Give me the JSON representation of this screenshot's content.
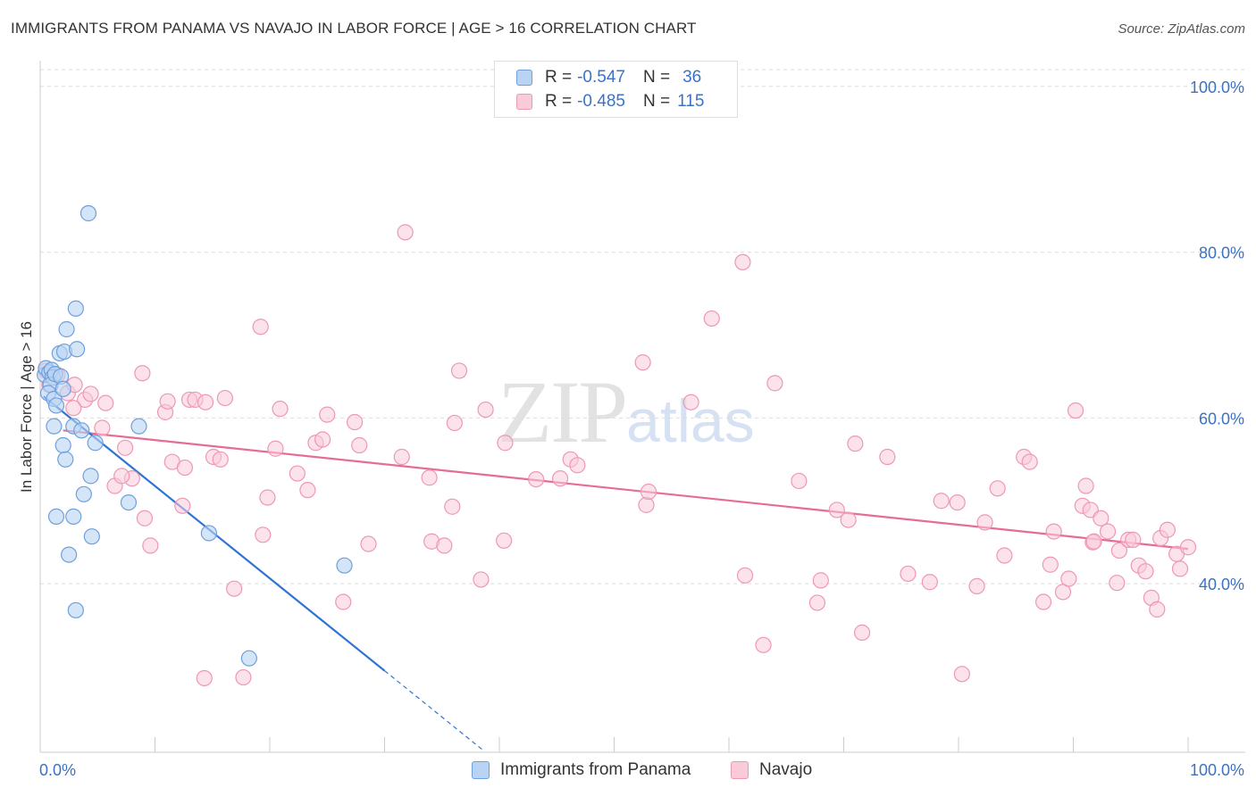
{
  "header": {
    "title": "IMMIGRANTS FROM PANAMA VS NAVAJO IN LABOR FORCE | AGE > 16 CORRELATION CHART",
    "source": "Source: ZipAtlas.com"
  },
  "watermark": {
    "zip": "ZIP",
    "atlas": "atlas"
  },
  "legend": {
    "rows": [
      {
        "r_label": "R =",
        "r_value": "-0.547",
        "n_label": "N =",
        "n_value": "36"
      },
      {
        "r_label": "R =",
        "r_value": "-0.485",
        "n_label": "N =",
        "n_value": "115"
      }
    ]
  },
  "colors": {
    "panama_fill": "#b9d3f4",
    "panama_stroke": "#6f9fdc",
    "panama_line": "#2f74d4",
    "navajo_fill": "#f9cad8",
    "navajo_stroke": "#ee98b3",
    "navajo_line": "#e66c97",
    "tick_text": "#3b72c4",
    "grid": "#dcdcdc"
  },
  "chart_data": {
    "type": "scatter",
    "title": "IMMIGRANTS FROM PANAMA VS NAVAJO IN LABOR FORCE | AGE > 16 CORRELATION CHART",
    "xlabel": "",
    "ylabel": "In Labor Force | Age > 16",
    "xlim": [
      0,
      100
    ],
    "ylim": [
      20,
      104
    ],
    "x_tick_labels": [
      "0.0%",
      "100.0%"
    ],
    "y_ticks": [
      40,
      60,
      80,
      100
    ],
    "y_tick_labels": [
      "40.0%",
      "60.0%",
      "80.0%",
      "100.0%"
    ],
    "grid": true,
    "legend_position": "top-center",
    "series": [
      {
        "name": "Immigrants from Panama",
        "R": -0.547,
        "N": 36,
        "points": [
          [
            0.4,
            65.2
          ],
          [
            0.5,
            66.0
          ],
          [
            0.8,
            65.5
          ],
          [
            1.0,
            65.8
          ],
          [
            1.1,
            64.9
          ],
          [
            0.9,
            64.0
          ],
          [
            1.3,
            65.3
          ],
          [
            0.7,
            63.0
          ],
          [
            1.2,
            62.3
          ],
          [
            1.4,
            61.5
          ],
          [
            1.8,
            65.0
          ],
          [
            2.0,
            63.5
          ],
          [
            1.7,
            67.8
          ],
          [
            2.1,
            68.0
          ],
          [
            2.3,
            70.7
          ],
          [
            3.2,
            68.3
          ],
          [
            3.1,
            73.2
          ],
          [
            4.2,
            84.7
          ],
          [
            1.2,
            59.0
          ],
          [
            2.9,
            59.0
          ],
          [
            3.6,
            58.5
          ],
          [
            2.0,
            56.7
          ],
          [
            4.8,
            57.0
          ],
          [
            2.2,
            55.0
          ],
          [
            4.4,
            53.0
          ],
          [
            3.8,
            50.8
          ],
          [
            7.7,
            49.8
          ],
          [
            1.4,
            48.1
          ],
          [
            2.9,
            48.1
          ],
          [
            4.5,
            45.7
          ],
          [
            2.5,
            43.5
          ],
          [
            3.1,
            36.8
          ],
          [
            8.6,
            59.0
          ],
          [
            14.7,
            46.1
          ],
          [
            26.5,
            42.2
          ],
          [
            18.2,
            31.0
          ]
        ],
        "trend": {
          "x": [
            0.3,
            30.0
          ],
          "y": [
            62.6,
            29.5
          ]
        },
        "trend_extension": {
          "x": [
            30.0,
            38.5
          ],
          "y": [
            29.5,
            20.0
          ]
        }
      },
      {
        "name": "Navajo",
        "R": -0.485,
        "N": 115,
        "points": [
          [
            0.5,
            65.7
          ],
          [
            0.8,
            64.0
          ],
          [
            1.5,
            65.2
          ],
          [
            2.4,
            63.0
          ],
          [
            3.0,
            64.0
          ],
          [
            3.9,
            62.2
          ],
          [
            4.4,
            62.9
          ],
          [
            5.7,
            61.8
          ],
          [
            2.9,
            61.2
          ],
          [
            5.4,
            58.8
          ],
          [
            7.4,
            56.4
          ],
          [
            6.5,
            51.8
          ],
          [
            8.0,
            52.7
          ],
          [
            7.1,
            53.0
          ],
          [
            9.1,
            47.9
          ],
          [
            9.6,
            44.6
          ],
          [
            8.9,
            65.4
          ],
          [
            10.9,
            60.7
          ],
          [
            11.1,
            62.0
          ],
          [
            11.5,
            54.7
          ],
          [
            12.4,
            49.4
          ],
          [
            12.6,
            54.0
          ],
          [
            13.0,
            62.2
          ],
          [
            13.5,
            62.2
          ],
          [
            14.4,
            61.9
          ],
          [
            15.1,
            55.3
          ],
          [
            15.7,
            55.0
          ],
          [
            16.1,
            62.4
          ],
          [
            16.9,
            39.4
          ],
          [
            17.7,
            28.7
          ],
          [
            14.3,
            28.6
          ],
          [
            19.2,
            71.0
          ],
          [
            19.4,
            45.9
          ],
          [
            19.8,
            50.4
          ],
          [
            20.5,
            56.3
          ],
          [
            20.9,
            61.1
          ],
          [
            22.4,
            53.3
          ],
          [
            23.3,
            51.3
          ],
          [
            24.0,
            57.0
          ],
          [
            24.6,
            57.4
          ],
          [
            25.0,
            60.4
          ],
          [
            26.4,
            37.8
          ],
          [
            27.4,
            59.5
          ],
          [
            27.8,
            56.7
          ],
          [
            28.6,
            44.8
          ],
          [
            31.5,
            55.3
          ],
          [
            31.8,
            82.4
          ],
          [
            33.9,
            52.8
          ],
          [
            34.1,
            45.1
          ],
          [
            35.2,
            44.6
          ],
          [
            35.9,
            49.3
          ],
          [
            36.5,
            65.7
          ],
          [
            36.1,
            59.4
          ],
          [
            38.4,
            40.5
          ],
          [
            38.8,
            61.0
          ],
          [
            40.5,
            57.0
          ],
          [
            40.4,
            45.2
          ],
          [
            43.2,
            52.6
          ],
          [
            45.3,
            52.7
          ],
          [
            46.2,
            55.0
          ],
          [
            46.8,
            54.3
          ],
          [
            52.5,
            66.7
          ],
          [
            52.8,
            49.5
          ],
          [
            53.0,
            51.1
          ],
          [
            56.7,
            61.9
          ],
          [
            58.5,
            72.0
          ],
          [
            61.2,
            78.8
          ],
          [
            61.4,
            41.0
          ],
          [
            63.0,
            32.6
          ],
          [
            64.0,
            64.2
          ],
          [
            66.1,
            52.4
          ],
          [
            67.7,
            37.7
          ],
          [
            68.0,
            40.4
          ],
          [
            69.4,
            48.9
          ],
          [
            70.4,
            47.7
          ],
          [
            71.0,
            56.9
          ],
          [
            71.6,
            34.1
          ],
          [
            73.8,
            55.3
          ],
          [
            75.6,
            41.2
          ],
          [
            77.5,
            40.2
          ],
          [
            78.5,
            50.0
          ],
          [
            79.9,
            49.8
          ],
          [
            80.3,
            29.1
          ],
          [
            81.6,
            39.7
          ],
          [
            82.3,
            47.4
          ],
          [
            83.4,
            51.5
          ],
          [
            84.0,
            43.4
          ],
          [
            85.7,
            55.3
          ],
          [
            86.2,
            54.7
          ],
          [
            87.4,
            37.8
          ],
          [
            88.0,
            42.3
          ],
          [
            88.3,
            46.3
          ],
          [
            89.1,
            39.0
          ],
          [
            89.6,
            40.6
          ],
          [
            90.2,
            60.9
          ],
          [
            90.8,
            49.4
          ],
          [
            91.1,
            51.8
          ],
          [
            91.5,
            48.9
          ],
          [
            91.7,
            45.0
          ],
          [
            91.8,
            45.1
          ],
          [
            92.4,
            47.9
          ],
          [
            93.0,
            46.3
          ],
          [
            94.0,
            44.0
          ],
          [
            94.8,
            45.3
          ],
          [
            95.2,
            45.3
          ],
          [
            95.7,
            42.2
          ],
          [
            96.3,
            41.5
          ],
          [
            96.8,
            38.3
          ],
          [
            97.3,
            36.9
          ],
          [
            97.6,
            45.5
          ],
          [
            98.2,
            46.5
          ],
          [
            99.0,
            43.6
          ],
          [
            99.3,
            41.8
          ],
          [
            100.0,
            44.4
          ],
          [
            93.8,
            40.1
          ]
        ],
        "trend": {
          "x": [
            2.0,
            100.0
          ],
          "y": [
            58.5,
            44.2
          ]
        }
      }
    ]
  },
  "bottom_legend": {
    "items": [
      {
        "label": "Immigrants from Panama"
      },
      {
        "label": "Navajo"
      }
    ]
  }
}
